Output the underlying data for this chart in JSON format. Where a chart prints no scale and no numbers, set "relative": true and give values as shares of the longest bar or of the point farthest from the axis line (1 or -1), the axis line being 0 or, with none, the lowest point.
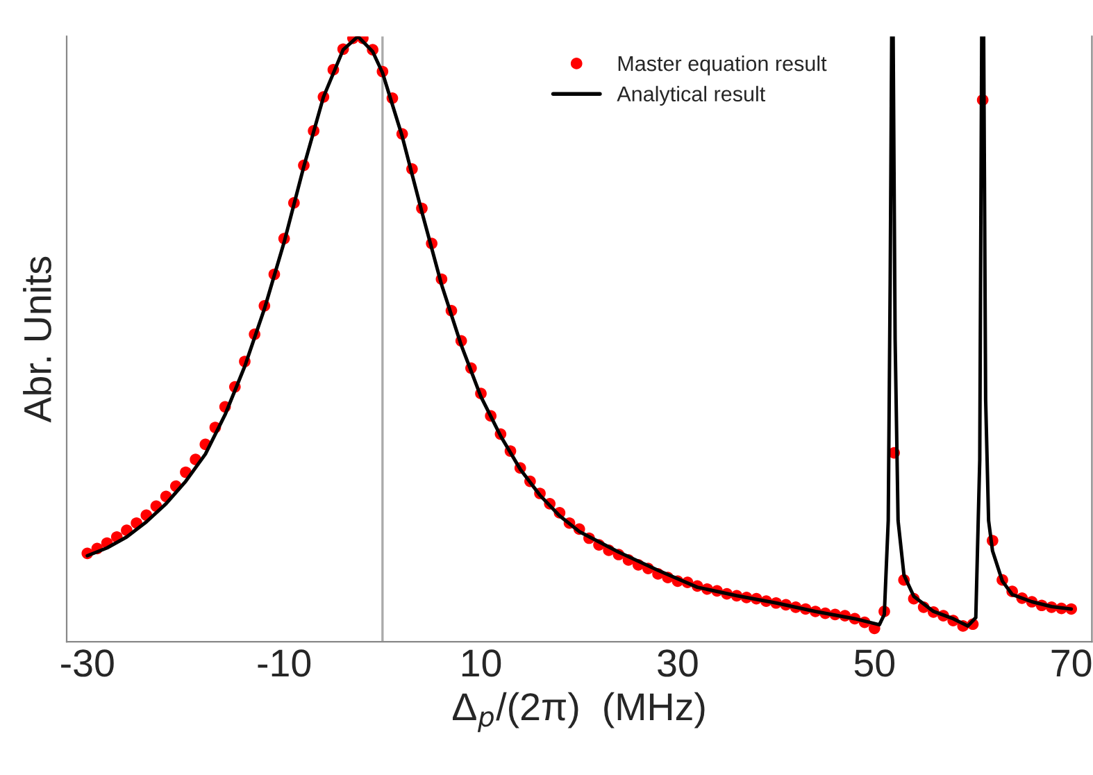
{
  "chart_data": {
    "type": "scatter",
    "relative": true,
    "xlabel": "Δ$_{p}$/(2π)  (MHz)",
    "ylabel": "Abr. Units",
    "xlim": [
      -32.1,
      72.1
    ],
    "xticks": [
      -30,
      -10,
      10,
      30,
      50,
      70
    ],
    "tick_labels": "x",
    "legend": "top right",
    "marker": "circle",
    "x": [
      -30,
      -29,
      -28,
      -27,
      -26,
      -25,
      -24,
      -23,
      -22,
      -21,
      -20,
      -19,
      -18,
      -17,
      -16,
      -15,
      -14,
      -13,
      -12,
      -11,
      -10,
      -9,
      -8,
      -7,
      -6,
      -5,
      -4,
      -3,
      -2,
      -1,
      0,
      1,
      2,
      3,
      4,
      5,
      6,
      7,
      8,
      9,
      10,
      11,
      12,
      13,
      14,
      15,
      16,
      17,
      18,
      19,
      20,
      21,
      22,
      23,
      24,
      25,
      26,
      27,
      28,
      29,
      30,
      31,
      32,
      33,
      34,
      35,
      36,
      37,
      38,
      39,
      40,
      41,
      42,
      43,
      44,
      45,
      46,
      47,
      48,
      49,
      50,
      51,
      52,
      53,
      54,
      55,
      56,
      57,
      58,
      59,
      60,
      61,
      62,
      63,
      64,
      65,
      66,
      67,
      68,
      69,
      70
    ],
    "ref_lines": [
      {
        "axis": "x",
        "value": 0,
        "color": "#aaaaaa"
      }
    ],
    "series": [
      {
        "name": "Master equation result",
        "color": "#ff0000",
        "values": [
          0.146,
          0.154,
          0.163,
          0.173,
          0.184,
          0.196,
          0.209,
          0.224,
          0.24,
          0.257,
          0.28,
          0.301,
          0.326,
          0.354,
          0.388,
          0.421,
          0.463,
          0.508,
          0.555,
          0.607,
          0.666,
          0.725,
          0.787,
          0.844,
          0.9,
          0.945,
          0.979,
          0.997,
          0.997,
          0.978,
          0.942,
          0.898,
          0.839,
          0.781,
          0.716,
          0.658,
          0.599,
          0.547,
          0.497,
          0.452,
          0.41,
          0.373,
          0.343,
          0.315,
          0.287,
          0.265,
          0.245,
          0.228,
          0.213,
          0.196,
          0.186,
          0.171,
          0.16,
          0.151,
          0.144,
          0.135,
          0.127,
          0.121,
          0.112,
          0.106,
          0.1,
          0.098,
          0.092,
          0.087,
          0.084,
          0.079,
          0.076,
          0.073,
          0.071,
          0.067,
          0.064,
          0.061,
          0.057,
          0.054,
          0.05,
          0.047,
          0.045,
          0.043,
          0.038,
          0.032,
          0.022,
          0.05,
          0.312,
          0.102,
          0.071,
          0.057,
          0.049,
          0.043,
          0.035,
          0.026,
          0.029,
          0.895,
          0.167,
          0.102,
          0.083,
          0.072,
          0.066,
          0.06,
          0.057,
          0.055,
          0.054
        ]
      },
      {
        "name": "Analytical result",
        "type": "line",
        "color": "#000000",
        "marker": "none",
        "line_style": "solid",
        "x": [
          -30,
          -28,
          -26,
          -24,
          -22,
          -20,
          -18,
          -16,
          -14,
          -12,
          -10,
          -8,
          -6,
          -4,
          -2.5,
          -1,
          0,
          2,
          4,
          6,
          8,
          10,
          12,
          14,
          16,
          18,
          20,
          24,
          28,
          32,
          36,
          40,
          44,
          48,
          50.5,
          51,
          51.4,
          51.6,
          51.75,
          51.9,
          52.1,
          52.4,
          53,
          54,
          56,
          58,
          59.5,
          60.3,
          60.7,
          60.9,
          61.1,
          61.3,
          61.6,
          62,
          63,
          64,
          66,
          68,
          70
        ],
        "values": [
          0.142,
          0.155,
          0.173,
          0.198,
          0.228,
          0.265,
          0.31,
          0.375,
          0.455,
          0.55,
          0.66,
          0.785,
          0.9,
          0.978,
          1.0,
          0.975,
          0.94,
          0.835,
          0.71,
          0.59,
          0.49,
          0.405,
          0.34,
          0.285,
          0.242,
          0.208,
          0.182,
          0.148,
          0.118,
          0.09,
          0.076,
          0.064,
          0.05,
          0.038,
          0.028,
          0.045,
          0.2,
          0.6,
          1.0,
          1.0,
          0.5,
          0.2,
          0.11,
          0.075,
          0.05,
          0.038,
          0.026,
          0.04,
          0.3,
          1.0,
          1.0,
          0.4,
          0.2,
          0.15,
          0.1,
          0.078,
          0.066,
          0.058,
          0.054
        ]
      }
    ]
  }
}
